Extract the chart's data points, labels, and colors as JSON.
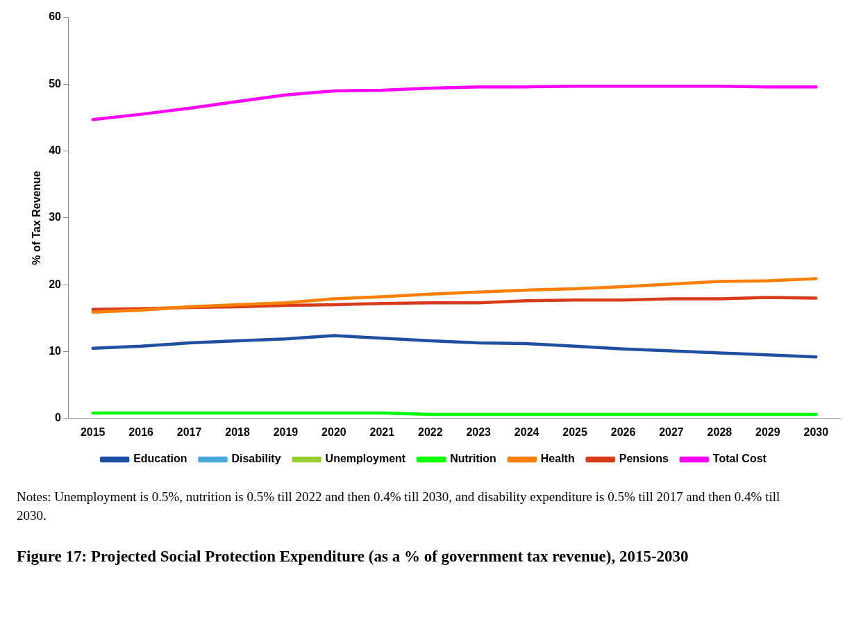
{
  "chart_data": {
    "type": "line",
    "title": "Figure 17: Projected Social Protection Expenditure (as a % of government tax revenue), 2015-2030",
    "ylabel": "% of Tax Revenue",
    "categories": [
      "2015",
      "2016",
      "2017",
      "2018",
      "2019",
      "2020",
      "2021",
      "2022",
      "2023",
      "2024",
      "2025",
      "2026",
      "2027",
      "2028",
      "2029",
      "2030"
    ],
    "ylim": [
      0,
      60
    ],
    "yticks": [
      0,
      10,
      20,
      30,
      40,
      50,
      60
    ],
    "grid": false,
    "legend": "bottom",
    "marker": "none",
    "line_style": "solid",
    "annotations": [
      "Notes: Unemployment is 0.5%, nutrition is 0.5% till 2022 and then 0.4% till 2030, and disability expenditure is 0.5% till 2017 and then 0.4% till 2030."
    ],
    "series": [
      {
        "name": "Education",
        "color": "#1f4fa0",
        "values": [
          10.5,
          10.8,
          11.3,
          11.6,
          11.9,
          12.4,
          12.0,
          11.6,
          11.3,
          11.2,
          10.8,
          10.4,
          10.1,
          9.8,
          9.5,
          9.2
        ]
      },
      {
        "name": "Disability",
        "color": "#4aa8d8",
        "values": [
          null,
          null,
          null,
          null,
          null,
          null,
          null,
          null,
          null,
          null,
          null,
          null,
          null,
          null,
          null,
          null
        ]
      },
      {
        "name": "Unemployment",
        "color": "#9acd32",
        "values": [
          null,
          null,
          null,
          null,
          null,
          null,
          null,
          null,
          null,
          null,
          null,
          null,
          null,
          null,
          null,
          null
        ]
      },
      {
        "name": "Nutrition",
        "color": "#00ff00",
        "values": [
          0.8,
          0.8,
          0.8,
          0.8,
          0.8,
          0.8,
          0.8,
          0.6,
          0.6,
          0.6,
          0.6,
          0.6,
          0.6,
          0.6,
          0.6,
          0.6
        ]
      },
      {
        "name": "Health",
        "color": "#ff8000",
        "values": [
          15.9,
          16.2,
          16.7,
          17.0,
          17.3,
          17.9,
          18.2,
          18.6,
          18.9,
          19.2,
          19.4,
          19.7,
          20.1,
          20.5,
          20.6,
          20.9
        ]
      },
      {
        "name": "Pensions",
        "color": "#d83b1a",
        "values": [
          16.3,
          16.4,
          16.6,
          16.7,
          16.9,
          17.0,
          17.2,
          17.3,
          17.3,
          17.6,
          17.7,
          17.7,
          17.9,
          17.9,
          18.1,
          18.0
        ]
      },
      {
        "name": "Total Cost",
        "color": "#ff00ff",
        "values": [
          44.7,
          45.5,
          46.4,
          47.4,
          48.4,
          49.0,
          49.1,
          49.4,
          49.6,
          49.6,
          49.7,
          49.7,
          49.7,
          49.7,
          49.6,
          49.6
        ]
      }
    ]
  }
}
